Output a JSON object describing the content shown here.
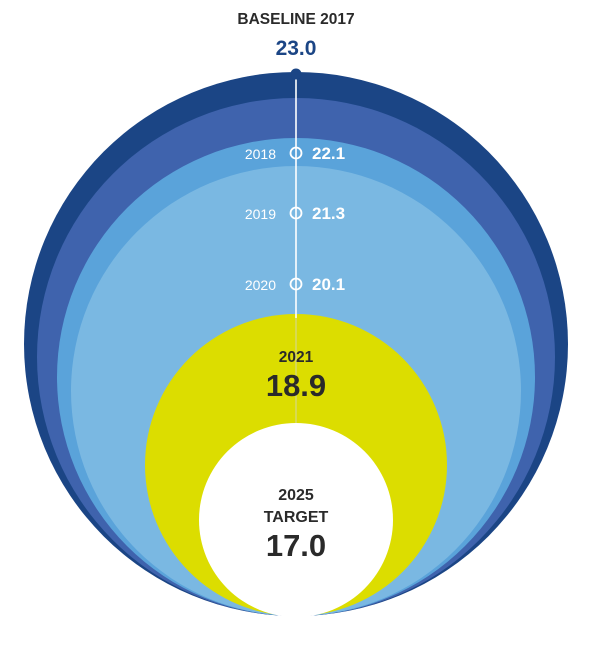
{
  "chart_data": {
    "type": "nested-circles",
    "baseline": {
      "label": "BASELINE 2017",
      "value": "23.0"
    },
    "rings": [
      {
        "year": "2018",
        "value": "22.1",
        "color": "#3f63ad"
      },
      {
        "year": "2019",
        "value": "21.3",
        "color": "#5aa3da"
      },
      {
        "year": "2020",
        "value": "20.1",
        "color": "#7ab8e2"
      }
    ],
    "highlight": {
      "year": "2021",
      "value": "18.9",
      "color": "#dcdd00"
    },
    "target": {
      "year": "2025",
      "label": "TARGET",
      "value": "17.0"
    },
    "colors": {
      "outer": "#1b4585",
      "baseline_value": "#1b4585",
      "dark_text": "#2a2a2a"
    }
  }
}
